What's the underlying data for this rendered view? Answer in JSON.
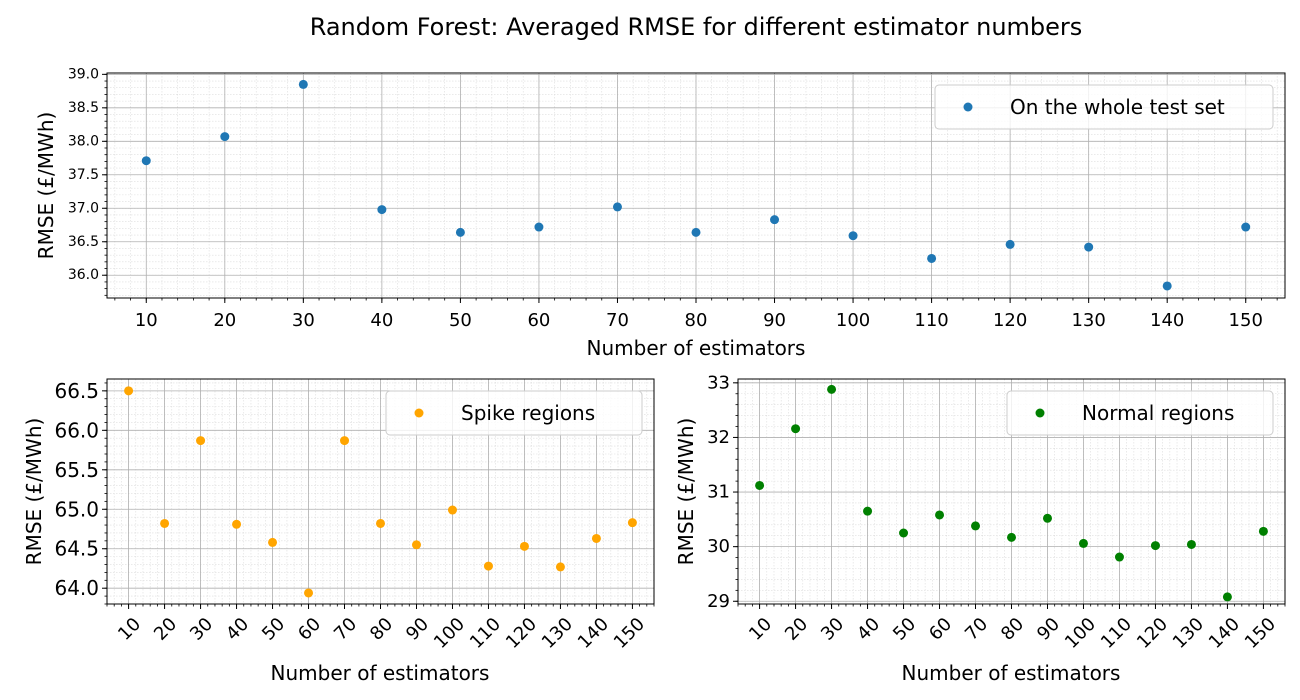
{
  "figure": {
    "title": "Random Forest: Averaged RMSE for different estimator numbers"
  },
  "chart_data": [
    {
      "type": "scatter",
      "x": [
        10,
        20,
        30,
        40,
        50,
        60,
        70,
        80,
        90,
        100,
        110,
        120,
        130,
        140,
        150
      ],
      "series": [
        {
          "name": "On the whole test set",
          "color": "#1f77b4",
          "values": [
            37.71,
            38.07,
            38.85,
            36.98,
            36.64,
            36.72,
            37.02,
            36.64,
            36.83,
            36.59,
            36.25,
            36.46,
            36.42,
            35.84,
            36.72
          ]
        }
      ],
      "xlabel": "Number of estimators",
      "ylabel": "RMSE (£/MWh)",
      "xticks": [
        "10",
        "20",
        "30",
        "40",
        "50",
        "60",
        "70",
        "80",
        "90",
        "100",
        "110",
        "120",
        "130",
        "140",
        "150"
      ],
      "yticks": [
        "36.0",
        "36.5",
        "37.0",
        "37.5",
        "38.0",
        "38.5",
        "39.0"
      ],
      "xlim": [
        5,
        155
      ],
      "ylim": [
        35.66,
        39.02
      ],
      "grid": true,
      "legend": "upper right"
    },
    {
      "type": "scatter",
      "x": [
        10,
        20,
        30,
        40,
        50,
        60,
        70,
        80,
        90,
        100,
        110,
        120,
        130,
        140,
        150
      ],
      "series": [
        {
          "name": "Spike regions",
          "color": "#ffa500",
          "values": [
            66.5,
            64.82,
            65.87,
            64.81,
            64.58,
            63.94,
            65.87,
            64.82,
            64.55,
            64.99,
            64.28,
            64.53,
            64.27,
            64.63,
            64.83
          ]
        }
      ],
      "xlabel": "Number of estimators",
      "ylabel": "RMSE (£/MWh)",
      "xticks": [
        "10",
        "20",
        "30",
        "40",
        "50",
        "60",
        "70",
        "80",
        "90",
        "100",
        "110",
        "120",
        "130",
        "140",
        "150"
      ],
      "yticks": [
        "64.0",
        "64.5",
        "65.0",
        "65.5",
        "66.0",
        "66.5"
      ],
      "xlim": [
        4,
        156
      ],
      "ylim": [
        63.8,
        66.65
      ],
      "grid": true,
      "legend": "upper right"
    },
    {
      "type": "scatter",
      "x": [
        10,
        20,
        30,
        40,
        50,
        60,
        70,
        80,
        90,
        100,
        110,
        120,
        130,
        140,
        150
      ],
      "series": [
        {
          "name": "Normal regions",
          "color": "#008000",
          "values": [
            31.12,
            32.16,
            32.88,
            30.65,
            30.25,
            30.58,
            30.38,
            30.17,
            30.52,
            30.06,
            29.81,
            30.02,
            30.04,
            29.08,
            30.28
          ]
        }
      ],
      "xlabel": "Number of estimators",
      "ylabel": "RMSE (£/MWh)",
      "xticks": [
        "10",
        "20",
        "30",
        "40",
        "50",
        "60",
        "70",
        "80",
        "90",
        "100",
        "110",
        "120",
        "130",
        "140",
        "150"
      ],
      "yticks": [
        "29",
        "30",
        "31",
        "32",
        "33"
      ],
      "xlim": [
        4,
        156
      ],
      "ylim": [
        28.95,
        33.07
      ],
      "grid": true,
      "legend": "upper right"
    }
  ]
}
